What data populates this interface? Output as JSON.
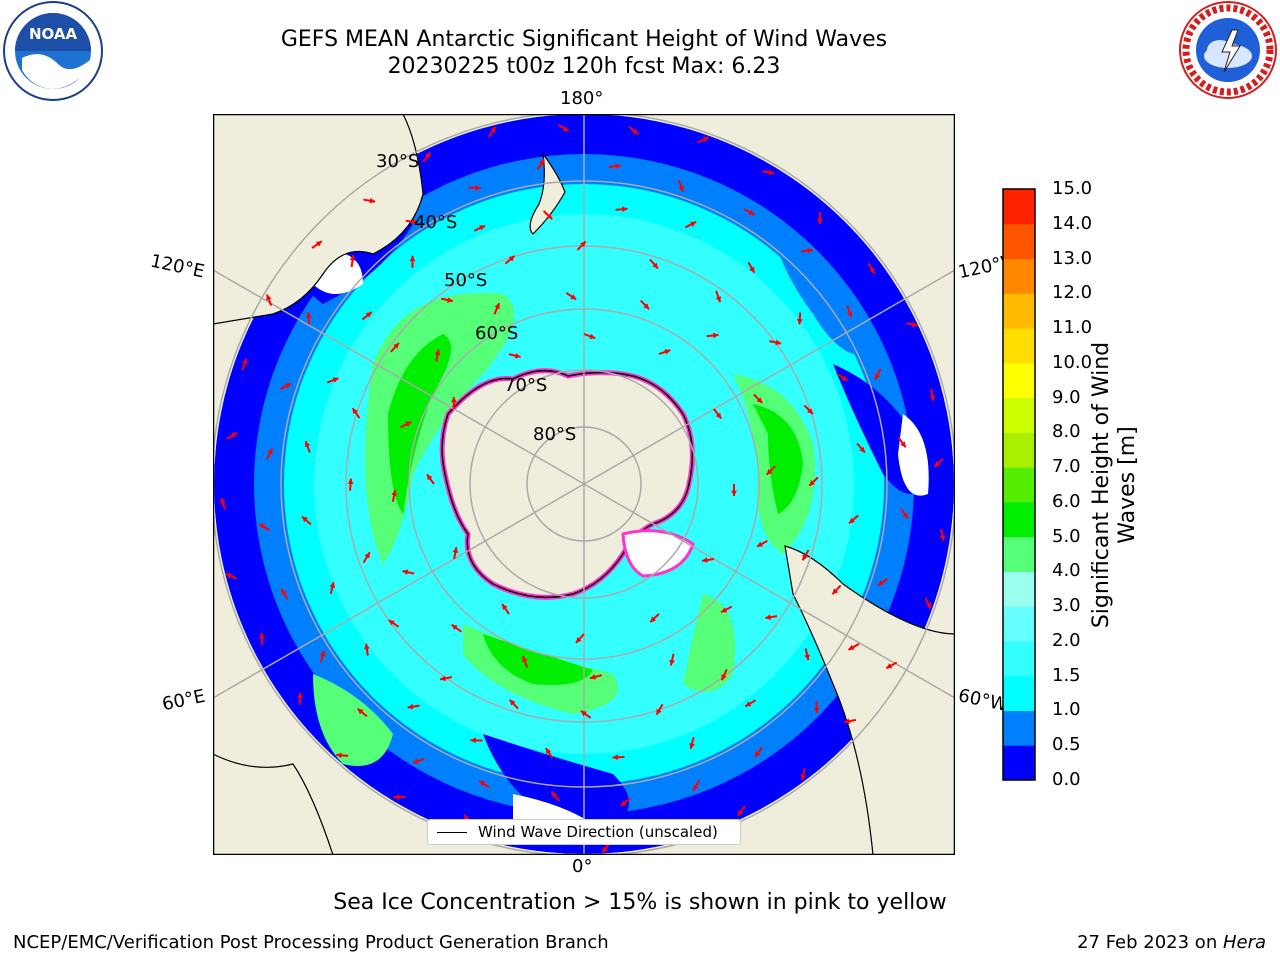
{
  "title": {
    "line1": "GEFS MEAN Antarctic Significant Height of Wind Waves",
    "line2": "20230225 t00z 120h fcst   Max: 6.23"
  },
  "logos": {
    "noaa": {
      "icon": "noaa-logo",
      "text": "NOAA"
    },
    "nws": {
      "icon": "nws-logo",
      "text": "NATIONAL WEATHER SERVICE"
    }
  },
  "map": {
    "projection": "south-polar-stereographic",
    "longitude_labels": {
      "top": "180°",
      "bottom": "0°",
      "left_upper": "120°E",
      "left_lower": "60°E",
      "right_upper": "120°W",
      "right_lower": "60°W"
    },
    "latitude_labels": [
      "30°S",
      "40°S",
      "50°S",
      "60°S",
      "70°S",
      "80°S"
    ],
    "legend": "Wind Wave Direction (unscaled)",
    "colors": {
      "land": "#efeddc",
      "ice": "#ffffff",
      "ice_edge": "#ff33cc",
      "arrow": "#ff0000"
    }
  },
  "colorbar": {
    "label": "Significant Height of Wind Waves [m]",
    "ticks": [
      "0.0",
      "0.5",
      "1.0",
      "1.5",
      "2.0",
      "3.0",
      "4.0",
      "5.0",
      "6.0",
      "7.0",
      "8.0",
      "9.0",
      "10.0",
      "11.0",
      "12.0",
      "13.0",
      "14.0",
      "15.0"
    ],
    "colors": [
      "#0000ff",
      "#0080ff",
      "#00ffff",
      "#33ffff",
      "#66ffff",
      "#99ffee",
      "#55ff77",
      "#00ee00",
      "#55ee00",
      "#aaee00",
      "#ccff00",
      "#ffff00",
      "#ffdd00",
      "#ffbb00",
      "#ff8800",
      "#ff5500",
      "#ff2200"
    ]
  },
  "footer": {
    "caption": "Sea Ice Concentration > 15% is shown in pink to yellow",
    "left": "NCEP/EMC/Verification Post Processing Product Generation Branch",
    "right_date": "27 Feb 2023 on ",
    "right_host": "Hera"
  }
}
